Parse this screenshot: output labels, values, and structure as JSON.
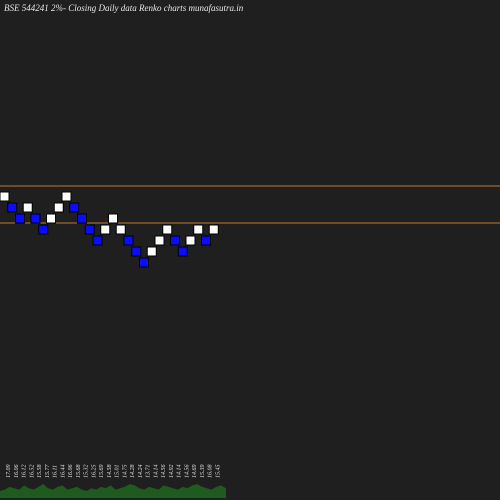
{
  "colors": {
    "background": "#1f1f1f",
    "up_brick": "#ffffff",
    "down_brick": "#0b0bff",
    "brick_border": "#000000",
    "ref_line": "#c8761c",
    "volume": "#1f5a1f",
    "text": "#e6e6e6"
  },
  "chart_data": {
    "type": "renko",
    "title": "BSE 544241 2%-  Closing Daily data  Renko  charts munafasutra.in",
    "grid": false,
    "bricks": [
      {
        "dir": "up",
        "level": 0
      },
      {
        "dir": "down",
        "level": -1
      },
      {
        "dir": "down",
        "level": -2
      },
      {
        "dir": "up",
        "level": -1
      },
      {
        "dir": "down",
        "level": -2
      },
      {
        "dir": "down",
        "level": -3
      },
      {
        "dir": "up",
        "level": -2
      },
      {
        "dir": "up",
        "level": -1
      },
      {
        "dir": "up",
        "level": 0
      },
      {
        "dir": "down",
        "level": -1
      },
      {
        "dir": "down",
        "level": -2
      },
      {
        "dir": "down",
        "level": -3
      },
      {
        "dir": "down",
        "level": -4
      },
      {
        "dir": "up",
        "level": -3
      },
      {
        "dir": "up",
        "level": -2
      },
      {
        "dir": "up",
        "level": -3
      },
      {
        "dir": "down",
        "level": -4
      },
      {
        "dir": "down",
        "level": -5
      },
      {
        "dir": "down",
        "level": -6
      },
      {
        "dir": "up",
        "level": -5
      },
      {
        "dir": "up",
        "level": -4
      },
      {
        "dir": "up",
        "level": -3
      },
      {
        "dir": "down",
        "level": -4
      },
      {
        "dir": "down",
        "level": -5
      },
      {
        "dir": "up",
        "level": -4
      },
      {
        "dir": "up",
        "level": -3
      },
      {
        "dir": "down",
        "level": -4
      },
      {
        "dir": "up",
        "level": -3
      }
    ],
    "reference_levels": [
      1,
      -2.5
    ],
    "x_tick_labels": [
      "17.09",
      "16.06",
      "16.12",
      "16.52",
      "15.58",
      "15.77",
      "16.11",
      "16.44",
      "16.06",
      "15.68",
      "15.32",
      "16.25",
      "15.69",
      "14.58",
      "15.01",
      "14.75",
      "14.28",
      "14.24",
      "13.71",
      "14.14",
      "14.56",
      "14.92",
      "14.14",
      "14.56",
      "14.69",
      "15.39",
      "16.08",
      "15.45"
    ],
    "volume": [
      5,
      6,
      8,
      7,
      6,
      9,
      7,
      6,
      8,
      10,
      7,
      6,
      8,
      9,
      6,
      7,
      8,
      6,
      5,
      7,
      6,
      8,
      7,
      9,
      6,
      7,
      8,
      10,
      9,
      7,
      6,
      8,
      7,
      6,
      9,
      8,
      7,
      6,
      8,
      7,
      9,
      10,
      8,
      7,
      6,
      8,
      9,
      7
    ]
  }
}
